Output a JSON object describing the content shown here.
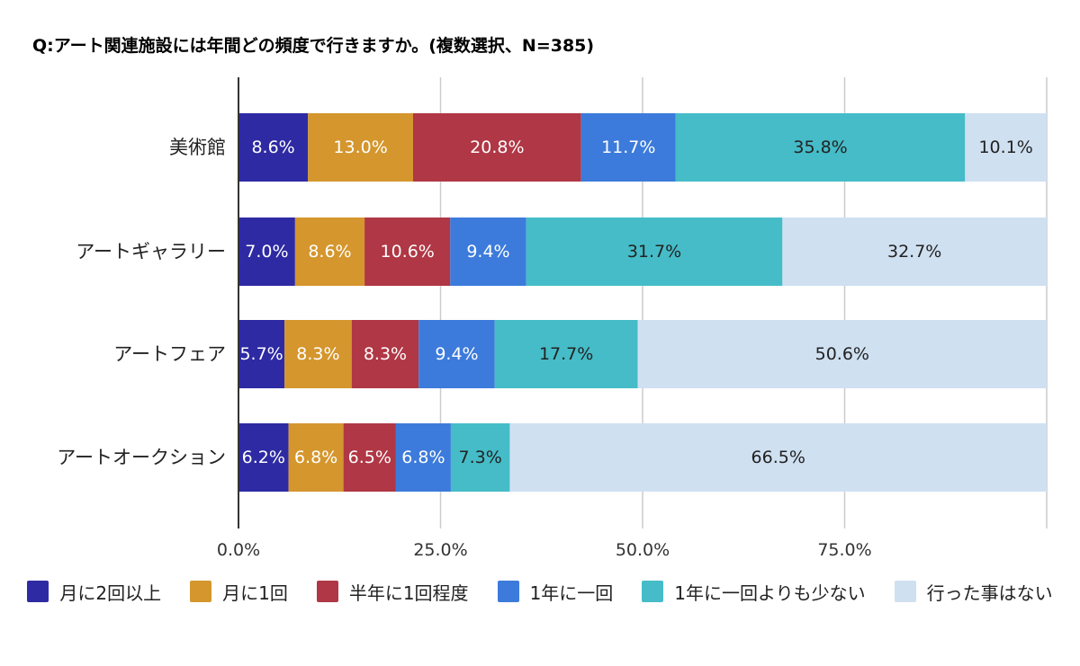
{
  "chart_data": {
    "type": "bar",
    "orientation": "horizontal",
    "stacked": true,
    "title": "Q:アート関連施設には年間どの頻度で行きますか。(複数選択、N=385)",
    "categories": [
      "美術館",
      "アートギャラリー",
      "アートフェア",
      "アートオークション"
    ],
    "series": [
      {
        "name": "月に2回以上",
        "color": "#2E2AA3",
        "values": [
          8.6,
          7.0,
          5.7,
          6.2
        ],
        "labels": [
          "8.6%",
          "7.0%",
          "5.7%",
          "6.2%"
        ]
      },
      {
        "name": "月に1回",
        "color": "#D4962D",
        "values": [
          13.0,
          8.6,
          8.3,
          6.8
        ],
        "labels": [
          "13.0%",
          "8.6%",
          "8.3%",
          "6.8%"
        ]
      },
      {
        "name": "半年に1回程度",
        "color": "#B03745",
        "values": [
          20.8,
          10.6,
          8.3,
          6.5
        ],
        "labels": [
          "20.8%",
          "10.6%",
          "8.3%",
          "6.5%"
        ]
      },
      {
        "name": "1年に一回",
        "color": "#3C7BDB",
        "values": [
          11.7,
          9.4,
          9.4,
          6.8
        ],
        "labels": [
          "11.7%",
          "9.4%",
          "9.4%",
          "6.8%"
        ]
      },
      {
        "name": "1年に一回よりも少ない",
        "color": "#45BCC8",
        "values": [
          35.8,
          31.7,
          17.7,
          7.3
        ],
        "labels": [
          "35.8%",
          "31.7%",
          "17.7%",
          "7.3%"
        ]
      },
      {
        "name": "行った事はない",
        "color": "#CFE0F1",
        "values": [
          10.1,
          32.7,
          50.6,
          66.5
        ],
        "labels": [
          "10.1%",
          "32.7%",
          "50.6%",
          "66.5%"
        ]
      }
    ],
    "xlim": [
      0,
      100
    ],
    "xticks": [
      0,
      25,
      50,
      75,
      100
    ],
    "xtick_labels": [
      "0.0%",
      "25.0%",
      "50.0%",
      "75.0%",
      ""
    ],
    "grid": true,
    "legend_position": "bottom"
  }
}
